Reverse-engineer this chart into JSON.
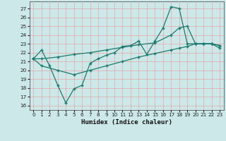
{
  "xlabel": "Humidex (Indice chaleur)",
  "bg_color": "#cce8e8",
  "grid_color": "#b0d4d4",
  "line_color": "#1a7a6e",
  "xlim": [
    -0.5,
    23.5
  ],
  "ylim": [
    15.5,
    27.8
  ],
  "xticks": [
    0,
    1,
    2,
    3,
    4,
    5,
    6,
    7,
    8,
    9,
    10,
    11,
    12,
    13,
    14,
    15,
    16,
    17,
    18,
    19,
    20,
    21,
    22,
    23
  ],
  "yticks": [
    16,
    17,
    18,
    19,
    20,
    21,
    22,
    23,
    24,
    25,
    26,
    27
  ],
  "line1_x": [
    0,
    1,
    2,
    3,
    4,
    5,
    6,
    7,
    8,
    9,
    10,
    11,
    12,
    13,
    14,
    15,
    16,
    17,
    18,
    19,
    20,
    21,
    22,
    23
  ],
  "line1_y": [
    21.3,
    22.3,
    20.5,
    18.3,
    16.3,
    17.9,
    18.3,
    20.8,
    21.3,
    21.7,
    22.0,
    22.7,
    22.8,
    23.3,
    21.8,
    23.3,
    24.8,
    27.2,
    27.0,
    23.0,
    23.0,
    23.0,
    23.0,
    22.8
  ],
  "line2_x": [
    0,
    1,
    3,
    5,
    7,
    9,
    11,
    13,
    15,
    17,
    18,
    19,
    20,
    21,
    22,
    23
  ],
  "line2_y": [
    21.3,
    21.3,
    21.5,
    21.8,
    22.0,
    22.3,
    22.6,
    22.9,
    23.1,
    24.0,
    24.8,
    25.0,
    23.0,
    23.0,
    23.0,
    22.8
  ],
  "line3_x": [
    0,
    1,
    3,
    5,
    7,
    9,
    11,
    13,
    15,
    17,
    18,
    19,
    20,
    21,
    22,
    23
  ],
  "line3_y": [
    21.3,
    20.5,
    20.0,
    19.5,
    20.0,
    20.5,
    21.0,
    21.5,
    21.9,
    22.3,
    22.5,
    22.7,
    23.0,
    23.0,
    23.0,
    22.5
  ],
  "xlabel_fontsize": 6.5,
  "tick_fontsize": 5.2
}
